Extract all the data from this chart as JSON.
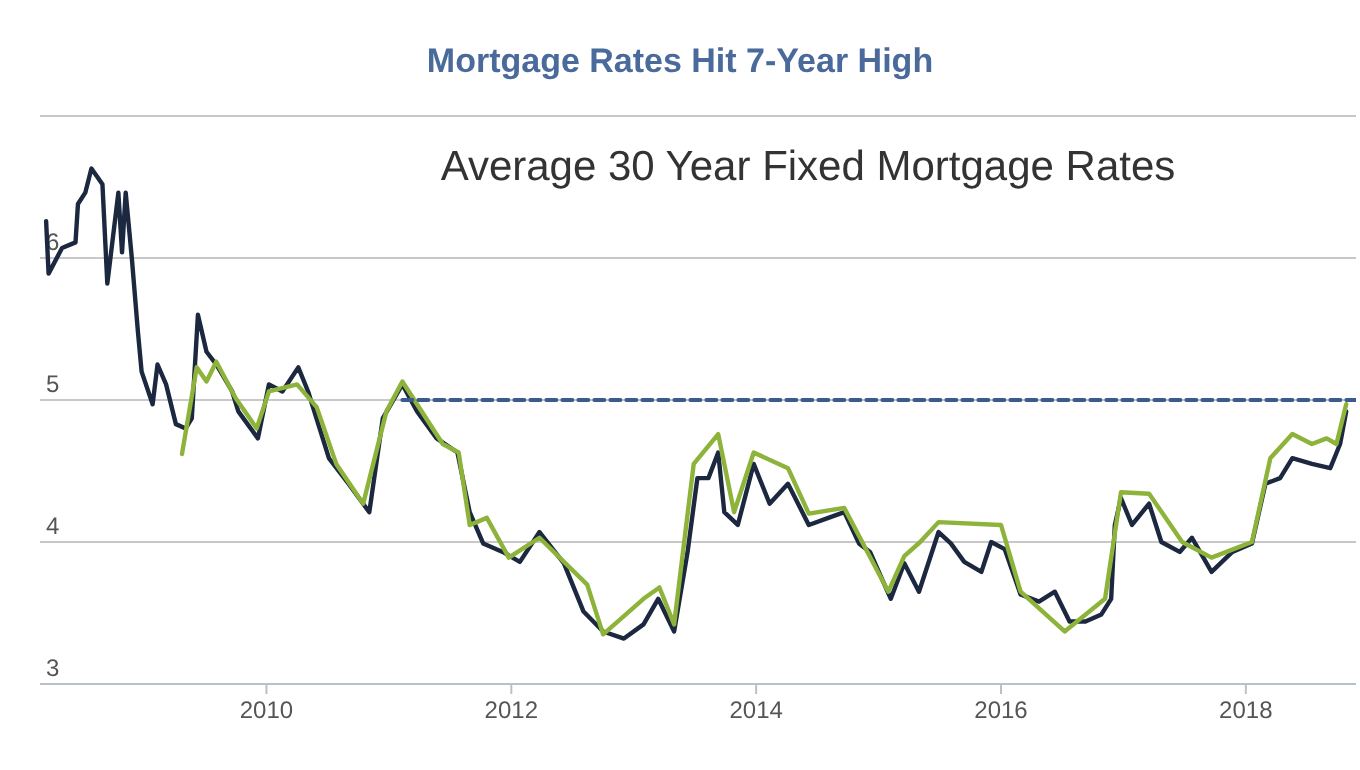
{
  "chart_data": {
    "type": "line",
    "title": "Mortgage Rates Hit 7-Year High",
    "subtitle": "Average 30 Year Fixed Mortgage Rates",
    "xlim": [
      2008.15,
      2018.9
    ],
    "xticks": [
      2010,
      2012,
      2014,
      2016,
      2018
    ],
    "ylim": [
      3,
      7
    ],
    "yticks": [
      3,
      4,
      5,
      6,
      {
        "value": 7,
        "label": null
      }
    ],
    "grid": "y",
    "series": [
      {
        "color": "#1c2840",
        "x": [
          2008.2,
          2008.22,
          2008.33,
          2008.44,
          2008.46,
          2008.52,
          2008.57,
          2008.66,
          2008.7,
          2008.79,
          2008.82,
          2008.85,
          2008.9,
          2008.95,
          2008.98,
          2009.07,
          2009.11,
          2009.18,
          2009.26,
          2009.34,
          2009.39,
          2009.44,
          2009.51,
          2009.59,
          2009.72,
          2009.77,
          2009.93,
          2010.02,
          2010.13,
          2010.26,
          2010.34,
          2010.51,
          2010.67,
          2010.84,
          2010.95,
          2011.11,
          2011.23,
          2011.39,
          2011.56,
          2011.66,
          2011.77,
          2011.93,
          2012.07,
          2012.23,
          2012.43,
          2012.59,
          2012.75,
          2012.92,
          2013.08,
          2013.2,
          2013.33,
          2013.44,
          2013.52,
          2013.61,
          2013.69,
          2013.74,
          2013.85,
          2013.98,
          2014.11,
          2014.26,
          2014.43,
          2014.59,
          2014.72,
          2014.84,
          2014.93,
          2015.1,
          2015.21,
          2015.33,
          2015.49,
          2015.59,
          2015.7,
          2015.84,
          2015.92,
          2016.03,
          2016.16,
          2016.31,
          2016.44,
          2016.56,
          2016.69,
          2016.82,
          2016.9,
          2016.93,
          2016.98,
          2017.07,
          2017.21,
          2017.31,
          2017.46,
          2017.56,
          2017.72,
          2017.89,
          2018.05,
          2018.16,
          2018.28,
          2018.38,
          2018.54,
          2018.69,
          2018.77,
          2018.82
        ],
        "values": [
          6.26,
          5.89,
          6.07,
          6.11,
          6.38,
          6.46,
          6.63,
          6.52,
          5.82,
          6.46,
          6.04,
          6.46,
          6.0,
          5.48,
          5.2,
          4.97,
          5.25,
          5.11,
          4.83,
          4.8,
          4.87,
          5.6,
          5.34,
          5.25,
          5.06,
          4.92,
          4.73,
          5.11,
          5.06,
          5.23,
          5.06,
          4.59,
          4.41,
          4.21,
          4.87,
          5.11,
          4.92,
          4.73,
          4.63,
          4.21,
          3.99,
          3.93,
          3.86,
          4.07,
          3.85,
          3.51,
          3.37,
          3.32,
          3.42,
          3.6,
          3.37,
          3.93,
          4.45,
          4.45,
          4.63,
          4.21,
          4.12,
          4.55,
          4.27,
          4.41,
          4.12,
          4.17,
          4.21,
          3.99,
          3.93,
          3.6,
          3.85,
          3.65,
          4.07,
          3.99,
          3.86,
          3.79,
          4.0,
          3.95,
          3.63,
          3.58,
          3.65,
          3.44,
          3.44,
          3.49,
          3.6,
          4.12,
          4.31,
          4.12,
          4.27,
          4.0,
          3.93,
          4.03,
          3.79,
          3.93,
          3.99,
          4.41,
          4.45,
          4.59,
          4.55,
          4.52,
          4.69,
          4.92
        ]
      },
      {
        "color": "#8db33a",
        "x": [
          2009.31,
          2009.43,
          2009.51,
          2009.59,
          2009.75,
          2009.92,
          2010.02,
          2010.25,
          2010.41,
          2010.57,
          2010.79,
          2010.98,
          2011.11,
          2011.23,
          2011.44,
          2011.57,
          2011.66,
          2011.8,
          2011.98,
          2012.23,
          2012.62,
          2012.75,
          2013.08,
          2013.21,
          2013.33,
          2013.49,
          2013.69,
          2013.82,
          2013.98,
          2014.26,
          2014.43,
          2014.72,
          2015.08,
          2015.21,
          2015.34,
          2015.49,
          2016.0,
          2016.16,
          2016.52,
          2016.85,
          2016.98,
          2017.21,
          2017.48,
          2017.72,
          2018.05,
          2018.2,
          2018.38,
          2018.54,
          2018.66,
          2018.74,
          2018.82
        ],
        "values": [
          4.62,
          5.23,
          5.13,
          5.27,
          5.01,
          4.8,
          5.06,
          5.11,
          4.95,
          4.55,
          4.27,
          4.92,
          5.13,
          4.97,
          4.69,
          4.63,
          4.12,
          4.17,
          3.89,
          4.03,
          3.7,
          3.35,
          3.6,
          3.68,
          3.42,
          4.55,
          4.76,
          4.21,
          4.63,
          4.52,
          4.2,
          4.24,
          3.65,
          3.9,
          4.0,
          4.14,
          4.12,
          3.65,
          3.37,
          3.6,
          4.35,
          4.34,
          4.0,
          3.89,
          4.0,
          4.59,
          4.76,
          4.69,
          4.73,
          4.69,
          4.97
        ]
      },
      {
        "color": "#3b5b8f",
        "line_style": "dashed",
        "x": [
          2011.11,
          2018.9
        ],
        "values": [
          5,
          5
        ]
      }
    ]
  }
}
